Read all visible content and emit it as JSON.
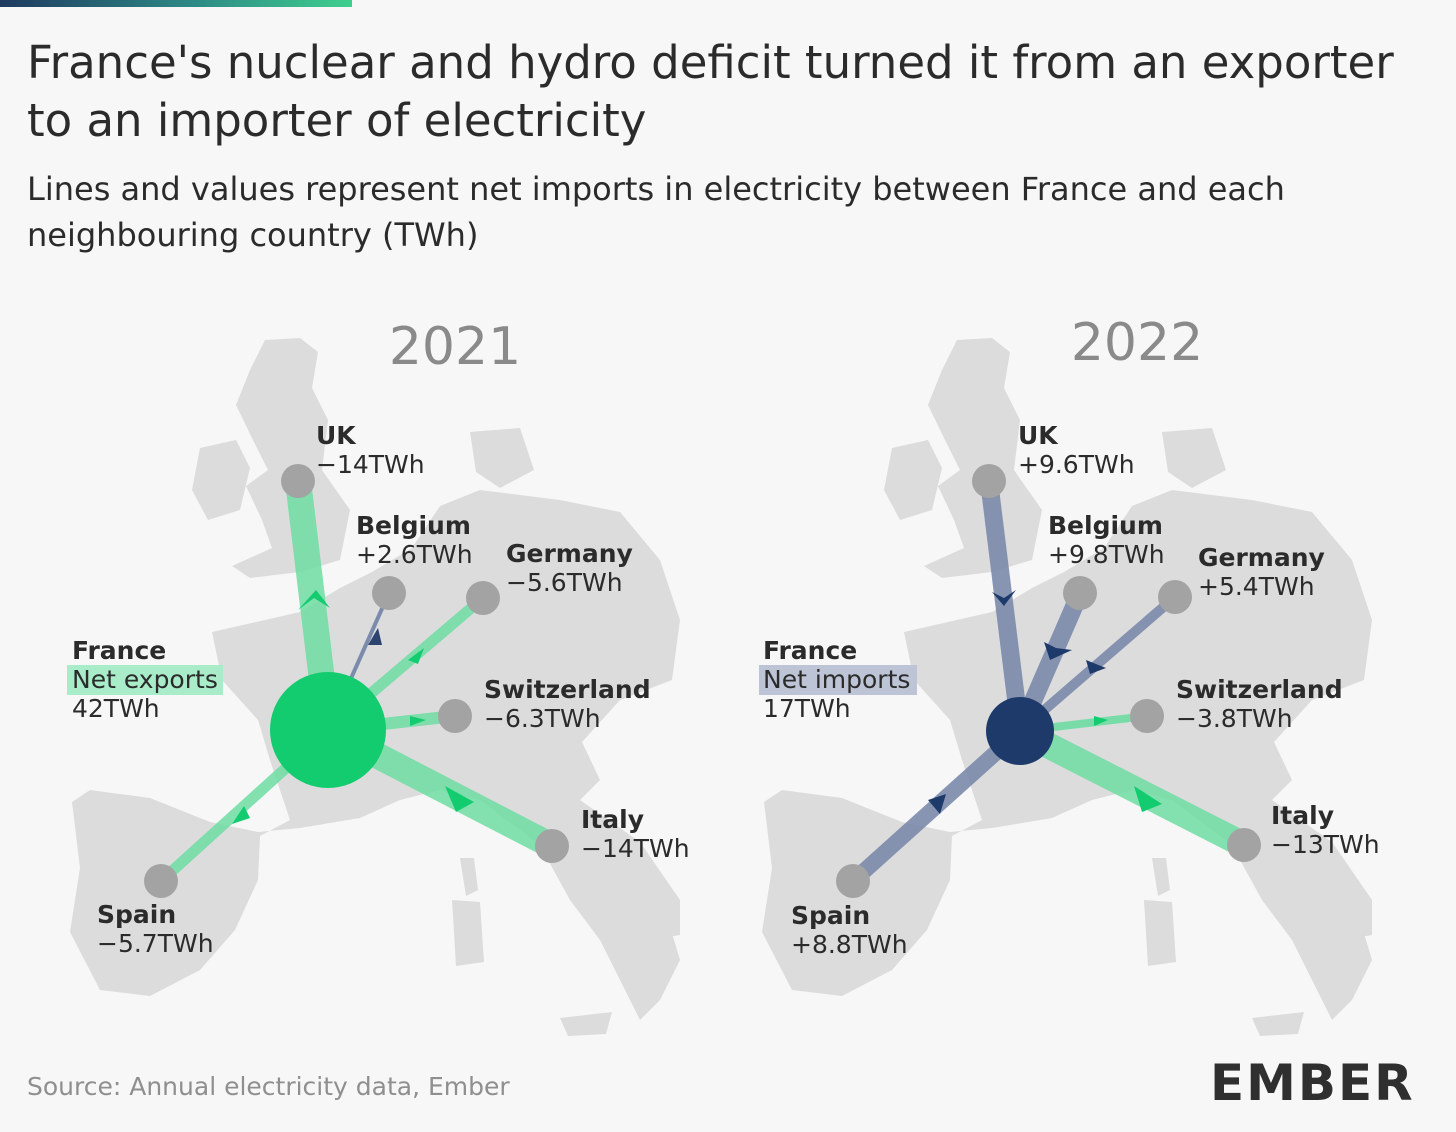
{
  "title": "France's nuclear and hydro deficit turned it from an exporter to an importer of electricity",
  "subtitle": "Lines and values represent net imports in electricity between France and each neighbouring country (TWh)",
  "source": "Source: Annual electricity data, Ember",
  "logo": "EMBER",
  "colors": {
    "export": "#6fdda3",
    "import": "#7b8bab",
    "france_export": "#13cc6f",
    "france_import": "#1e3a6a",
    "node": "#a3a3a3",
    "land": "#dcdcdc"
  },
  "map_2021": {
    "year": "2021",
    "france": {
      "name": "France",
      "badge": "Net exports",
      "value": "42TWh",
      "net_twh": 42
    },
    "countries": [
      {
        "name": "UK",
        "value": "−14TWh",
        "twh": -14
      },
      {
        "name": "Belgium",
        "value": "+2.6TWh",
        "twh": 2.6
      },
      {
        "name": "Germany",
        "value": "−5.6TWh",
        "twh": -5.6
      },
      {
        "name": "Switzerland",
        "value": "−6.3TWh",
        "twh": -6.3
      },
      {
        "name": "Italy",
        "value": "−14TWh",
        "twh": -14
      },
      {
        "name": "Spain",
        "value": "−5.7TWh",
        "twh": -5.7
      }
    ]
  },
  "map_2022": {
    "year": "2022",
    "france": {
      "name": "France",
      "badge": "Net imports",
      "value": "17TWh",
      "net_twh": -17
    },
    "countries": [
      {
        "name": "UK",
        "value": "+9.6TWh",
        "twh": 9.6
      },
      {
        "name": "Belgium",
        "value": "+9.8TWh",
        "twh": 9.8
      },
      {
        "name": "Germany",
        "value": "+5.4TWh",
        "twh": 5.4
      },
      {
        "name": "Switzerland",
        "value": "−3.8TWh",
        "twh": -3.8
      },
      {
        "name": "Italy",
        "value": "−13TWh",
        "twh": -13
      },
      {
        "name": "Spain",
        "value": "+8.8TWh",
        "twh": 8.8
      }
    ]
  }
}
